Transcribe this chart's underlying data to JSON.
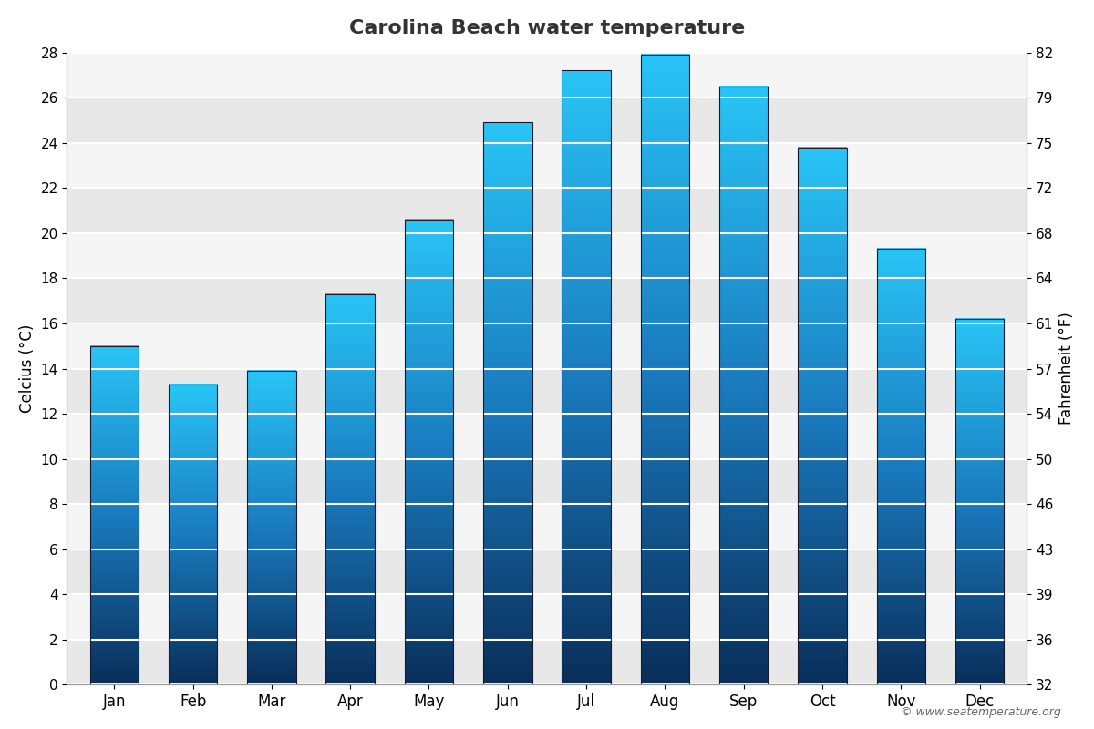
{
  "title": "Carolina Beach water temperature",
  "months": [
    "Jan",
    "Feb",
    "Mar",
    "Apr",
    "May",
    "Jun",
    "Jul",
    "Aug",
    "Sep",
    "Oct",
    "Nov",
    "Dec"
  ],
  "values_c": [
    15.0,
    13.3,
    13.9,
    17.3,
    20.6,
    24.9,
    27.2,
    27.9,
    26.5,
    23.8,
    19.3,
    16.2
  ],
  "ylabel_left": "Celcius (°C)",
  "ylabel_right": "Fahrenheit (°F)",
  "ylim_left": [
    0,
    28
  ],
  "yticks_left": [
    0,
    2,
    4,
    6,
    8,
    10,
    12,
    14,
    16,
    18,
    20,
    22,
    24,
    26,
    28
  ],
  "yticks_right": [
    32,
    36,
    39,
    43,
    46,
    50,
    54,
    57,
    61,
    64,
    68,
    72,
    75,
    79,
    82
  ],
  "background_color": "#ffffff",
  "plot_bg_color": "#f5f5f5",
  "bar_color_top": "#29c5f6",
  "bar_color_mid": "#1a7bbf",
  "bar_color_bottom": "#0a2e5a",
  "bar_border_color": "#1a1a2e",
  "grid_color": "#ffffff",
  "watermark": "© www.seatemperature.org",
  "title_fontsize": 16,
  "label_fontsize": 12,
  "tick_fontsize": 11,
  "bar_width": 0.62
}
